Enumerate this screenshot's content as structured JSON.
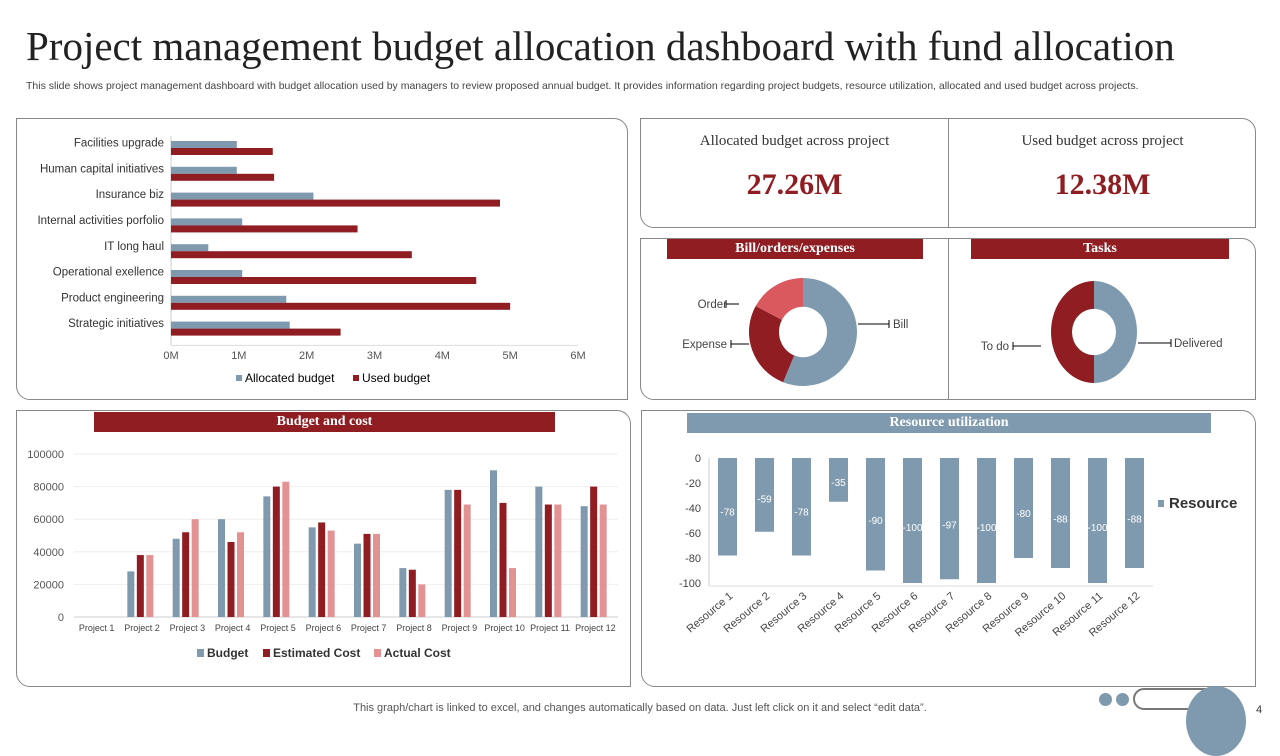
{
  "title": "Project management budget allocation dashboard with fund allocation",
  "subtitle": "This slide shows project management dashboard with budget allocation used by managers to review proposed annual budget. It provides information regarding project budgets, resource utilization, allocated and used budget across projects.",
  "kpis": [
    {
      "label": "Allocated budget across project",
      "value": "27.26M"
    },
    {
      "label": "Used budget across project",
      "value": "12.38M"
    }
  ],
  "headers": {
    "bills": "Bill/orders/expenses",
    "tasks": "Tasks",
    "budget": "Budget and cost",
    "resource": "Resource utilization"
  },
  "footer": "This graph/chart is linked to excel, and changes automatically based on data. Just left click on it and select “edit data”.",
  "page_number": "4",
  "colors": {
    "red": "#8f1d22",
    "blue": "#7f9aae",
    "pink": "#e39294",
    "title_red": "#8f1d22"
  },
  "chart_data": [
    {
      "type": "bar",
      "orientation": "horizontal",
      "categories": [
        "Facilities upgrade",
        "Human capital initiatives",
        "Insurance biz",
        "Internal activities porfolio",
        "IT long haul",
        "Operational exellence",
        "Product engineering",
        "Strategic initiatives"
      ],
      "series": [
        {
          "name": "Allocated budget",
          "values": [
            0.97,
            0.97,
            2.1,
            1.05,
            0.55,
            1.05,
            1.7,
            1.75
          ]
        },
        {
          "name": "Used budget",
          "values": [
            1.5,
            1.52,
            4.85,
            2.75,
            3.55,
            4.5,
            5.0,
            2.5
          ]
        }
      ],
      "xlim": [
        0,
        6
      ],
      "xticks": [
        "0M",
        "1M",
        "2M",
        "3M",
        "4M",
        "5M",
        "6M"
      ],
      "legend": "bottom"
    },
    {
      "type": "pie",
      "title": "Bill/orders/expenses",
      "donut": true,
      "slices": [
        {
          "name": "Bill",
          "value": 56
        },
        {
          "name": "Expense",
          "value": 27
        },
        {
          "name": "Order",
          "value": 17
        }
      ]
    },
    {
      "type": "pie",
      "title": "Tasks",
      "donut": true,
      "slices": [
        {
          "name": "Delivered",
          "value": 50
        },
        {
          "name": "To do",
          "value": 50
        }
      ]
    },
    {
      "type": "bar",
      "title": "Budget and cost",
      "categories": [
        "Project 1",
        "Project 2",
        "Project 3",
        "Project 4",
        "Project 5",
        "Project 6",
        "Project 7",
        "Project 8",
        "Project 9",
        "Project 10",
        "Project 11",
        "Project 12"
      ],
      "series": [
        {
          "name": "Budget",
          "values": [
            0,
            28000,
            48000,
            60000,
            74000,
            55000,
            45000,
            30000,
            78000,
            90000,
            80000,
            68000
          ]
        },
        {
          "name": "Estimated Cost",
          "values": [
            0,
            38000,
            52000,
            46000,
            80000,
            58000,
            51000,
            29000,
            78000,
            70000,
            69000,
            80000
          ]
        },
        {
          "name": "Actual Cost",
          "values": [
            0,
            38000,
            60000,
            52000,
            83000,
            53000,
            51000,
            20000,
            69000,
            30000,
            69000,
            69000
          ]
        }
      ],
      "ylim": [
        0,
        100000
      ],
      "yticks": [
        "0",
        "20000",
        "40000",
        "60000",
        "80000",
        "100000"
      ],
      "legend": "bottom"
    },
    {
      "type": "bar",
      "title": "Resource utilization",
      "categories": [
        "Resource 1",
        "Resource 2",
        "Resource 3",
        "Resource 4",
        "Resource 5",
        "Resource 6",
        "Resource 7",
        "Resource 8",
        "Resource 9",
        "Resource 10",
        "Resource 11",
        "Resource 12"
      ],
      "series": [
        {
          "name": "Resource",
          "values": [
            -78,
            -59,
            -78,
            -35,
            -90,
            -100,
            -97,
            -100,
            -80,
            -88,
            -100,
            -88
          ]
        }
      ],
      "ylim": [
        -100,
        0
      ],
      "yticks": [
        "0",
        "-20",
        "-40",
        "-60",
        "-80",
        "-100"
      ],
      "legend": "right"
    }
  ]
}
